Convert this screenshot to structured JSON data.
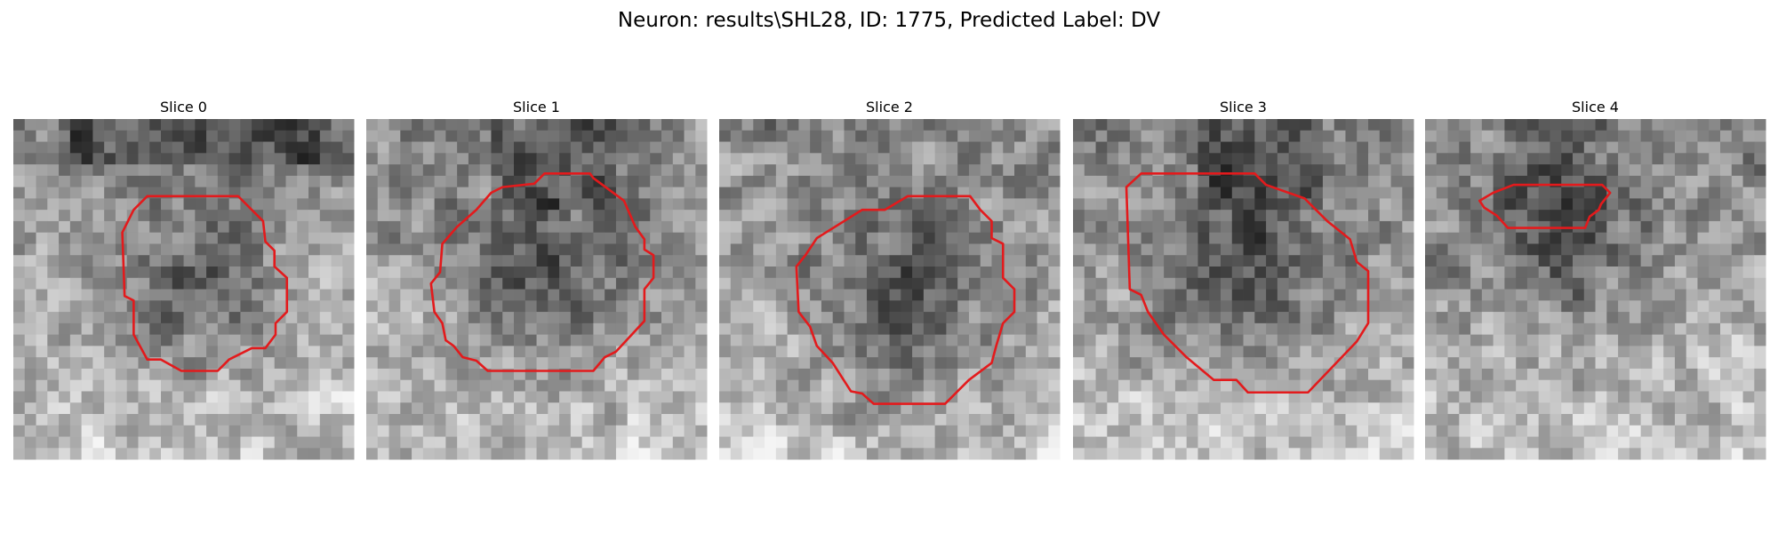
{
  "header": {
    "title": "Neuron: results\\SHL28, ID: 1775, Predicted Label: DV"
  },
  "panels": [
    {
      "title": "Slice 0"
    },
    {
      "title": "Slice 1"
    },
    {
      "title": "Slice 2"
    },
    {
      "title": "Slice 3"
    },
    {
      "title": "Slice 4"
    }
  ]
}
